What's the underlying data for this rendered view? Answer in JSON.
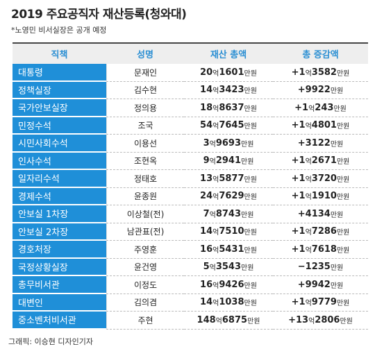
{
  "header": {
    "title": "2019 주요공직자 재산등록(청와대)",
    "note": "*노영민 비서실장은 공개 예정"
  },
  "table": {
    "columns": [
      "직책",
      "성명",
      "재산 총액",
      "총 증감액"
    ],
    "rows": [
      {
        "position": "대통령",
        "name": "문재인",
        "assets": [
          "20",
          "억",
          "1601",
          "만원"
        ],
        "change": [
          "+1",
          "억",
          "3582",
          "만원"
        ]
      },
      {
        "position": "정책실장",
        "name": "김수현",
        "assets": [
          "14",
          "억",
          "3423",
          "만원"
        ],
        "change": [
          "+9922",
          "만원"
        ]
      },
      {
        "position": "국가안보실장",
        "name": "정의용",
        "assets": [
          "18",
          "억",
          "8637",
          "만원"
        ],
        "change": [
          "+1",
          "억",
          "243",
          "만원"
        ]
      },
      {
        "position": "민정수석",
        "name": "조국",
        "assets": [
          "54",
          "억",
          "7645",
          "만원"
        ],
        "change": [
          "+1",
          "억",
          "4801",
          "만원"
        ]
      },
      {
        "position": "시민사회수석",
        "name": "이용선",
        "assets": [
          "3",
          "억",
          "9693",
          "만원"
        ],
        "change": [
          "+3122",
          "만원"
        ]
      },
      {
        "position": "인사수석",
        "name": "조현옥",
        "assets": [
          "9",
          "억",
          "2941",
          "만원"
        ],
        "change": [
          "+1",
          "억",
          "2671",
          "만원"
        ]
      },
      {
        "position": "일자리수석",
        "name": "정태호",
        "assets": [
          "13",
          "억",
          "5877",
          "만원"
        ],
        "change": [
          "+1",
          "억",
          "3720",
          "만원"
        ]
      },
      {
        "position": "경제수석",
        "name": "윤종원",
        "assets": [
          "24",
          "억",
          "7629",
          "만원"
        ],
        "change": [
          "+1",
          "억",
          "1910",
          "만원"
        ]
      },
      {
        "position": "안보실 1차장",
        "name": "이상철(전)",
        "assets": [
          "7",
          "억",
          "8743",
          "만원"
        ],
        "change": [
          "+4134",
          "만원"
        ]
      },
      {
        "position": "안보실 2차장",
        "name": "남관표(전)",
        "assets": [
          "14",
          "억",
          "7510",
          "만원"
        ],
        "change": [
          "+1",
          "억",
          "7286",
          "만원"
        ]
      },
      {
        "position": "경호처장",
        "name": "주영훈",
        "assets": [
          "16",
          "억",
          "5431",
          "만원"
        ],
        "change": [
          "+1",
          "억",
          "7618",
          "만원"
        ]
      },
      {
        "position": "국정상황실장",
        "name": "윤건영",
        "assets": [
          "5",
          "억",
          "3543",
          "만원"
        ],
        "change": [
          "−1235",
          "만원"
        ]
      },
      {
        "position": "총무비서관",
        "name": "이정도",
        "assets": [
          "16",
          "억",
          "9426",
          "만원"
        ],
        "change": [
          "+9942",
          "만원"
        ]
      },
      {
        "position": "대변인",
        "name": "김의겸",
        "assets": [
          "14",
          "억",
          "1038",
          "만원"
        ],
        "change": [
          "+1",
          "억",
          "9779",
          "만원"
        ]
      },
      {
        "position": "중소벤처비서관",
        "name": "주현",
        "assets": [
          "148",
          "억",
          "6875",
          "만원"
        ],
        "change": [
          "+13",
          "억",
          "2806",
          "만원"
        ]
      }
    ]
  },
  "footer": {
    "credit": "그래픽: 이승현 디자인기자"
  }
}
